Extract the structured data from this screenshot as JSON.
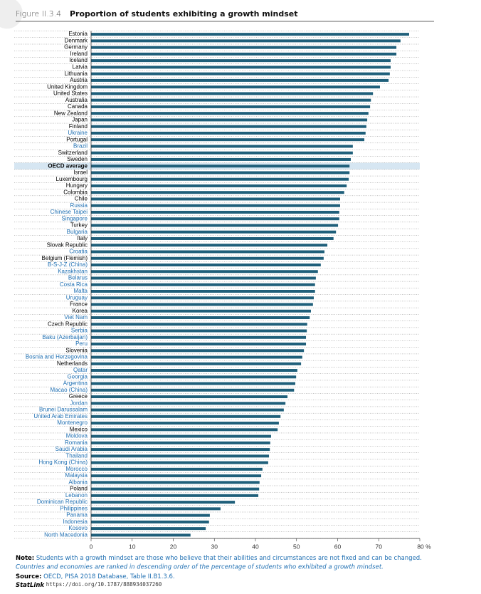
{
  "figure_label": "Figure II.3.4",
  "chart_data": {
    "type": "barh",
    "title": "Proportion of students exhibiting a growth mindset",
    "categories": [
      "Estonia",
      "Denmark",
      "Germany",
      "Ireland",
      "Iceland",
      "Latvia",
      "Lithuania",
      "Austria",
      "United Kingdom",
      "United States",
      "Australia",
      "Canada",
      "New Zealand",
      "Japan",
      "Finland",
      "Ukraine",
      "Portugal",
      "Brazil",
      "Switzerland",
      "Sweden",
      "OECD average",
      "Israel",
      "Luxembourg",
      "Hungary",
      "Colombia",
      "Chile",
      "Russia",
      "Chinese Taipei",
      "Singapore",
      "Turkey",
      "Bulgaria",
      "Italy",
      "Slovak Republic",
      "Croatia",
      "Belgium (Flemish)",
      "B-S-J-Z (China)",
      "Kazakhstan",
      "Belarus",
      "Costa Rica",
      "Malta",
      "Uruguay",
      "France",
      "Korea",
      "Viet Nam",
      "Czech Republic",
      "Serbia",
      "Baku (Azerbaijan)",
      "Peru",
      "Slovenia",
      "Bosnia and Herzegovina",
      "Netherlands",
      "Qatar",
      "Georgia",
      "Argentina",
      "Macao (China)",
      "Greece",
      "Jordan",
      "Brunei Darussalam",
      "United Arab Emirates",
      "Montenegro",
      "Mexico",
      "Moldova",
      "Romania",
      "Saudi Arabia",
      "Thailand",
      "Hong Kong (China)",
      "Morocco",
      "Malaysia",
      "Albania",
      "Poland",
      "Lebanon",
      "Dominican Republic",
      "Philippines",
      "Panama",
      "Indonesia",
      "Kosovo",
      "North Macedonia"
    ],
    "values": [
      77.4,
      75.3,
      74.3,
      74.3,
      72.9,
      72.9,
      72.7,
      72.4,
      70.3,
      68.6,
      68.1,
      67.9,
      67.5,
      67.2,
      67.0,
      66.8,
      66.5,
      63.7,
      63.7,
      63.2,
      62.9,
      62.9,
      62.7,
      62.2,
      61.6,
      60.6,
      60.6,
      60.4,
      60.4,
      60.1,
      59.6,
      59.0,
      57.5,
      56.8,
      56.6,
      55.9,
      55.2,
      54.7,
      54.5,
      54.5,
      54.2,
      54.0,
      53.5,
      53.2,
      52.6,
      52.5,
      52.3,
      52.3,
      51.8,
      51.4,
      51.1,
      50.2,
      49.9,
      49.7,
      49.4,
      47.8,
      47.3,
      46.9,
      46.1,
      45.7,
      45.4,
      43.8,
      43.6,
      43.5,
      43.3,
      43.1,
      41.7,
      41.4,
      41.0,
      40.9,
      40.7,
      35.0,
      31.5,
      28.9,
      28.7,
      27.9,
      24.2
    ],
    "label_colors": [
      "#000",
      "#000",
      "#000",
      "#000",
      "#000",
      "#000",
      "#000",
      "#000",
      "#000",
      "#000",
      "#000",
      "#000",
      "#000",
      "#000",
      "#000",
      "#1f6fb2",
      "#000",
      "#1f6fb2",
      "#000",
      "#000",
      "#000",
      "#000",
      "#000",
      "#000",
      "#000",
      "#000",
      "#1f6fb2",
      "#1f6fb2",
      "#1f6fb2",
      "#000",
      "#1f6fb2",
      "#000",
      "#000",
      "#1f6fb2",
      "#000",
      "#1f6fb2",
      "#1f6fb2",
      "#1f6fb2",
      "#1f6fb2",
      "#1f6fb2",
      "#1f6fb2",
      "#000",
      "#000",
      "#1f6fb2",
      "#000",
      "#1f6fb2",
      "#1f6fb2",
      "#1f6fb2",
      "#000",
      "#1f6fb2",
      "#000",
      "#1f6fb2",
      "#1f6fb2",
      "#1f6fb2",
      "#1f6fb2",
      "#000",
      "#1f6fb2",
      "#1f6fb2",
      "#1f6fb2",
      "#1f6fb2",
      "#000",
      "#1f6fb2",
      "#1f6fb2",
      "#1f6fb2",
      "#1f6fb2",
      "#1f6fb2",
      "#1f6fb2",
      "#1f6fb2",
      "#1f6fb2",
      "#000",
      "#1f6fb2",
      "#1f6fb2",
      "#1f6fb2",
      "#1f6fb2",
      "#1f6fb2",
      "#1f6fb2",
      "#1f6fb2"
    ],
    "highlight": 20,
    "color": "#1f5f7a",
    "xlim": [
      0,
      80
    ],
    "xticks": [
      0,
      10,
      20,
      30,
      40,
      50,
      60,
      70,
      {
        "value": 80,
        "label": "80 %"
      }
    ]
  },
  "notes": {
    "note_label": "Note:",
    "note": "Students with a growth mindset are those who believe that their abilities and circumstances are not fixed and can be changed.",
    "ordering": "Countries and economies are ranked in descending order of the percentage of students who exhibited a growth mindset.",
    "source_label": "Source:",
    "source": "OECD, PISA 2018 Database, Table II.B1.3.6.",
    "statlink_label": "StatLink",
    "statlink": "https://doi.org/10.1787/888934037260"
  }
}
